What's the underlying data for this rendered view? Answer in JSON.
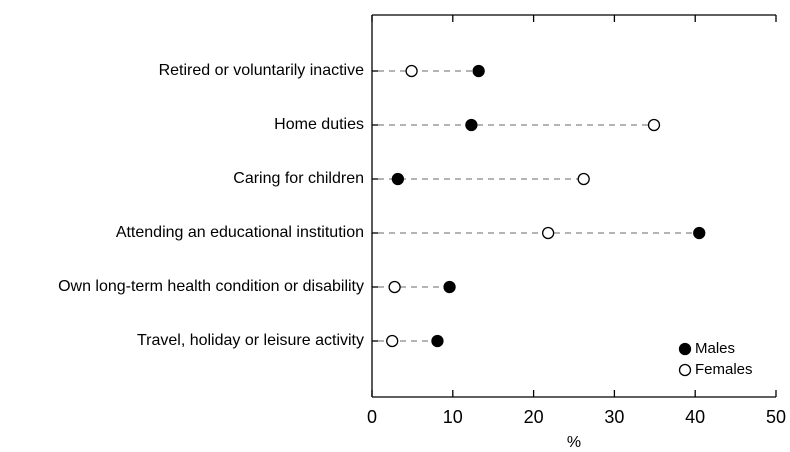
{
  "chart_data": {
    "type": "dot",
    "categories": [
      "Retired or voluntarily inactive",
      "Home duties",
      "Caring for children",
      "Attending an educational institution",
      "Own long-term health condition or disability",
      "Travel, holiday or leisure activity"
    ],
    "series": [
      {
        "name": "Males",
        "color": "#000000",
        "values": [
          13.2,
          12.3,
          3.2,
          40.5,
          9.6,
          8.1
        ]
      },
      {
        "name": "Females",
        "color": "#ffffff",
        "values": [
          4.9,
          34.9,
          26.2,
          21.8,
          2.8,
          2.5
        ]
      }
    ],
    "xlabel": "%",
    "xlim": [
      0,
      50
    ],
    "xticks": [
      0,
      10,
      20,
      30,
      40,
      50
    ],
    "legend": "bottom-right"
  }
}
